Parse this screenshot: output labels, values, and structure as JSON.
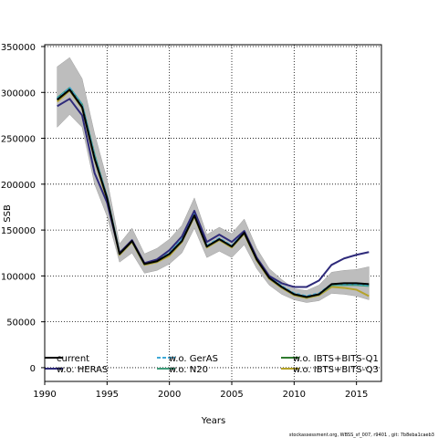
{
  "chart_data": {
    "type": "line",
    "title": "",
    "xlabel": "Years",
    "ylabel": "SSB",
    "xlim": [
      1990,
      2017
    ],
    "ylim": [
      -15000,
      352000
    ],
    "x_ticks": [
      1990,
      1995,
      2000,
      2005,
      2010,
      2015
    ],
    "y_ticks": [
      0,
      50000,
      100000,
      150000,
      200000,
      250000,
      300000,
      350000
    ],
    "grid": true,
    "legend_position": "bottom",
    "confidence_band": {
      "x": [
        1991,
        1992,
        1993,
        1994,
        1995,
        1996,
        1997,
        1998,
        1999,
        2000,
        2001,
        2002,
        2003,
        2004,
        2005,
        2006,
        2007,
        2008,
        2009,
        2010,
        2011,
        2012,
        2013,
        2014,
        2015,
        2016
      ],
      "lower": [
        262000,
        276000,
        262000,
        200000,
        165000,
        115000,
        125000,
        103000,
        106000,
        113000,
        125000,
        152000,
        120000,
        127000,
        120000,
        134000,
        108000,
        90000,
        80000,
        74000,
        71000,
        73000,
        81000,
        80000,
        78000,
        74000
      ],
      "upper": [
        328000,
        338000,
        315000,
        255000,
        205000,
        135000,
        152000,
        124000,
        130000,
        140000,
        155000,
        185000,
        145000,
        153000,
        146000,
        162000,
        130000,
        108000,
        96000,
        86000,
        84000,
        90000,
        104000,
        106000,
        107000,
        110000
      ]
    },
    "series": [
      {
        "name": "current",
        "color": "#000000",
        "dash": "solid",
        "values": [
          292000,
          303000,
          284000,
          228000,
          185000,
          124000,
          138000,
          113000,
          116000,
          124000,
          138000,
          166000,
          132000,
          140000,
          132000,
          147000,
          118000,
          98000,
          88000,
          80000,
          77000,
          80000,
          91000,
          92000,
          92000,
          91000
        ]
      },
      {
        "name": "w.o. HERAS",
        "color": "#2e2a7a",
        "dash": "solid",
        "values": [
          285000,
          293000,
          275000,
          212000,
          180000,
          125000,
          139000,
          114000,
          118000,
          128000,
          143000,
          171000,
          137000,
          145000,
          137000,
          149000,
          120000,
          100000,
          92000,
          88000,
          88000,
          95000,
          112000,
          119000,
          123000,
          126000
        ]
      },
      {
        "name": "w.o. GerAS",
        "color": "#3fa9d6",
        "dash": "dashed",
        "values": [
          293000,
          305000,
          286000,
          230000,
          186000,
          124000,
          138000,
          113000,
          117000,
          125000,
          140000,
          168000,
          133000,
          141000,
          133000,
          148000,
          119000,
          99000,
          89000,
          81000,
          78000,
          81000,
          91000,
          91000,
          91000,
          90000
        ]
      },
      {
        "name": "w.o. N20",
        "color": "#3f9c7a",
        "dash": "solid",
        "values": [
          294000,
          305000,
          287000,
          232000,
          186000,
          125000,
          138000,
          113000,
          116000,
          124000,
          139000,
          167000,
          132000,
          140000,
          132000,
          147000,
          119000,
          98000,
          88000,
          80000,
          77000,
          80000,
          90000,
          90000,
          90000,
          89000
        ]
      },
      {
        "name": "w.o. IBTS+BITS-Q1",
        "color": "#2f7a2f",
        "dash": "solid",
        "values": [
          292000,
          303000,
          284000,
          228000,
          185000,
          124000,
          138000,
          113000,
          116000,
          124000,
          138000,
          166000,
          132000,
          140000,
          132000,
          147000,
          118000,
          98000,
          88000,
          80000,
          77000,
          80000,
          90000,
          91000,
          91000,
          90000
        ]
      },
      {
        "name": "w.o. IBTS+BITS-Q3",
        "color": "#b5a22a",
        "dash": "solid",
        "values": [
          290000,
          302000,
          283000,
          227000,
          183000,
          123000,
          137000,
          112000,
          115000,
          122000,
          137000,
          165000,
          131000,
          139000,
          131000,
          146000,
          117000,
          97000,
          87000,
          79000,
          76000,
          79000,
          88000,
          87000,
          85000,
          78000
        ]
      }
    ]
  },
  "legend": {
    "items": [
      {
        "label": "current",
        "color": "#000000"
      },
      {
        "label": "w.o. HERAS",
        "color": "#2e2a7a"
      },
      {
        "label": "w.o. GerAS",
        "color": "#3fa9d6"
      },
      {
        "label": "w.o. N20",
        "color": "#3f9c7a"
      },
      {
        "label": "w.o. IBTS+BITS-Q1",
        "color": "#2f7a2f"
      },
      {
        "label": "w.o. IBTS+BITS-Q3",
        "color": "#b5a22a"
      }
    ]
  },
  "footer": {
    "text": "stockassessment.org, WBSS_sf_007, r9401 , git: 7b8eba1caeb3"
  }
}
